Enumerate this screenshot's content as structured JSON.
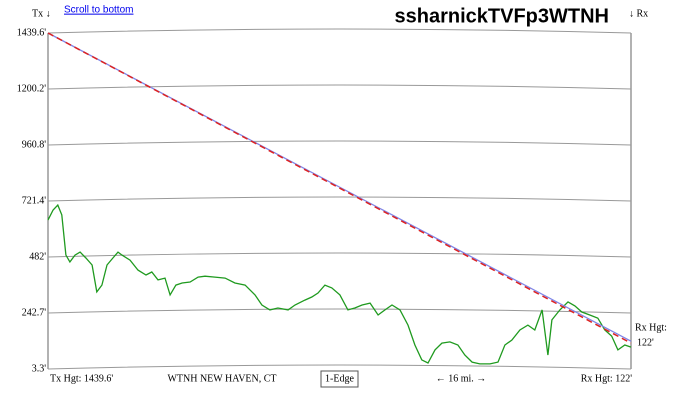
{
  "header": {
    "tx_label": "Tx ↓",
    "scroll_link": "Scroll to bottom",
    "rx_label": "↓ Rx"
  },
  "chart_data": {
    "type": "line",
    "title": "ssharnickTVFp3WTNH",
    "xlim": [
      0,
      16
    ],
    "ylim": [
      3.3,
      1439.6
    ],
    "yticks": [
      {
        "value": 1439.6,
        "label": "1439.6'"
      },
      {
        "value": 1200.2,
        "label": "1200.2'"
      },
      {
        "value": 960.8,
        "label": "960.8'"
      },
      {
        "value": 721.4,
        "label": "721.4'"
      },
      {
        "value": 482,
        "label": "482'"
      },
      {
        "value": 242.7,
        "label": "242.7'"
      },
      {
        "value": 3.3,
        "label": "3.3'"
      }
    ],
    "grid": true,
    "series": [
      {
        "color": "#1f9a1f",
        "x": [
          0,
          0.14,
          0.27,
          0.38,
          0.49,
          0.6,
          0.74,
          0.88,
          1.04,
          1.21,
          1.34,
          1.48,
          1.62,
          1.78,
          1.92,
          2.03,
          2.25,
          2.47,
          2.69,
          2.85,
          3.02,
          3.21,
          3.35,
          3.51,
          3.68,
          3.9,
          4.12,
          4.31,
          4.58,
          4.86,
          5.13,
          5.41,
          5.68,
          5.87,
          6.09,
          6.31,
          6.59,
          6.78,
          7.05,
          7.24,
          7.41,
          7.6,
          7.79,
          8.01,
          8.23,
          8.42,
          8.62,
          8.84,
          9.06,
          9.25,
          9.44,
          9.66,
          9.88,
          10.07,
          10.26,
          10.43,
          10.62,
          10.81,
          11.03,
          11.25,
          11.44,
          11.64,
          11.85,
          12.13,
          12.35,
          12.54,
          12.73,
          12.95,
          13.17,
          13.36,
          13.56,
          13.72,
          13.83,
          14.05,
          14.27,
          14.46,
          14.65,
          14.87,
          15.09,
          15.28,
          15.47,
          15.64,
          15.83,
          16
        ],
        "values": [
          640,
          683,
          704,
          662,
          490,
          461,
          490,
          503,
          478,
          448,
          333,
          362,
          448,
          478,
          503,
          490,
          469,
          426,
          405,
          418,
          384,
          392,
          320,
          362,
          371,
          375,
          396,
          400,
          396,
          392,
          371,
          362,
          320,
          277,
          256,
          264,
          256,
          277,
          298,
          311,
          328,
          362,
          350,
          320,
          256,
          264,
          277,
          285,
          234,
          256,
          277,
          256,
          191,
          106,
          42,
          29,
          85,
          114,
          119,
          106,
          63,
          33,
          25,
          25,
          33,
          106,
          127,
          170,
          191,
          170,
          256,
          63,
          213,
          256,
          290,
          273,
          247,
          234,
          221,
          170,
          144,
          85,
          106,
          97
        ]
      },
      {
        "color": "#7f86e8",
        "x": [
          0,
          16
        ],
        "values": [
          1439.6,
          122
        ]
      },
      {
        "color": "#dd2222",
        "dashed": true,
        "x": [
          0,
          16
        ],
        "values": [
          1439.6,
          114
        ]
      }
    ]
  },
  "footer": {
    "tx_height": "Tx Hgt: 1439.6'",
    "station": "WTNH NEW HAVEN, CT",
    "button": "1-Edge",
    "distance": "← 16 mi. →",
    "rx_height": "Rx Hgt: 122'"
  },
  "rx_side": {
    "label": "Rx Hgt:",
    "value": "122'"
  }
}
